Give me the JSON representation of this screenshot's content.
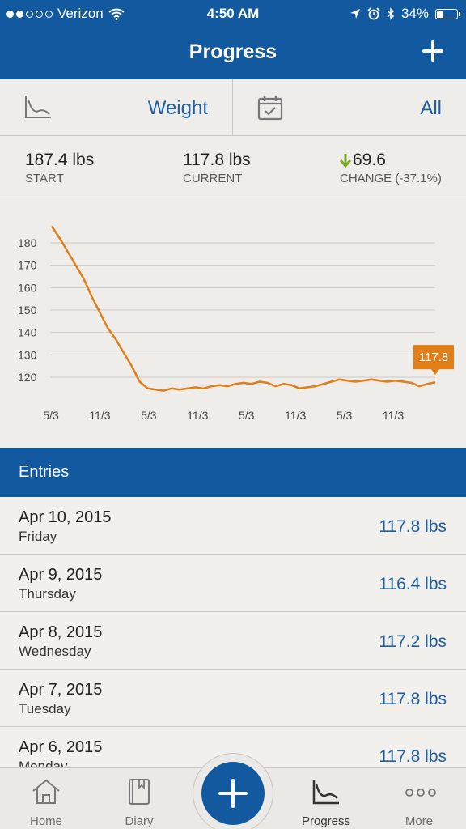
{
  "status_bar": {
    "carrier": "Verizon",
    "time": "4:50 AM",
    "battery": "34%",
    "battery_level": 0.34,
    "signal_bars": 2
  },
  "header": {
    "title": "Progress"
  },
  "filters": {
    "metric": "Weight",
    "range": "All"
  },
  "stats": {
    "start_value": "187.4 lbs",
    "start_label": "START",
    "current_value": "117.8 lbs",
    "current_label": "CURRENT",
    "change_value": "69.6",
    "change_label": "CHANGE (-37.1%)"
  },
  "colors": {
    "brand_blue": "#1359a0",
    "line_orange": "#e07e1a",
    "change_green": "#7aab2a"
  },
  "chart_data": {
    "type": "line",
    "ylim": [
      110,
      190
    ],
    "y_ticks": [
      180,
      170,
      160,
      150,
      140,
      130,
      120
    ],
    "x_tick_labels": [
      "5/3",
      "11/3",
      "5/3",
      "11/3",
      "5/3",
      "11/3",
      "5/3",
      "11/3"
    ],
    "x": [
      0,
      1,
      2,
      3,
      4,
      5,
      6,
      7,
      8,
      9,
      10,
      11,
      12,
      13,
      14,
      15,
      16,
      17,
      18,
      19,
      20,
      21,
      22,
      23,
      24,
      25,
      26,
      27,
      28,
      29,
      30,
      31,
      32,
      33,
      34,
      35,
      36,
      37,
      38,
      39,
      40,
      41,
      42,
      43,
      44,
      45,
      46,
      47,
      48
    ],
    "series": [
      {
        "values": [
          187.4,
          182,
          176,
          170,
          164,
          156,
          149,
          142,
          137,
          131,
          125,
          118,
          115,
          114.5,
          114,
          115,
          114.5,
          115,
          115.5,
          115,
          116,
          116.5,
          116,
          117,
          117.5,
          117,
          118,
          117.5,
          116,
          117,
          116.5,
          115,
          115.5,
          116,
          117,
          118,
          119,
          118.5,
          118,
          118.5,
          119,
          118.5,
          118,
          118.5,
          118,
          117.5,
          116,
          117,
          117.8
        ]
      }
    ],
    "last_point_label": "117.8"
  },
  "entries_header": "Entries",
  "entries": [
    {
      "date": "Apr 10, 2015",
      "day": "Friday",
      "weight": "117.8 lbs"
    },
    {
      "date": "Apr 9, 2015",
      "day": "Thursday",
      "weight": "116.4 lbs"
    },
    {
      "date": "Apr 8, 2015",
      "day": "Wednesday",
      "weight": "117.2 lbs"
    },
    {
      "date": "Apr 7, 2015",
      "day": "Tuesday",
      "weight": "117.8 lbs"
    },
    {
      "date": "Apr 6, 2015",
      "day": "Monday",
      "weight": "117.8 lbs"
    }
  ],
  "tabs": [
    {
      "label": "Home",
      "icon": "home-icon"
    },
    {
      "label": "Diary",
      "icon": "diary-icon"
    },
    {
      "label": "Progress",
      "icon": "progress-chart-icon",
      "active": true
    },
    {
      "label": "More",
      "icon": "more-dots-icon"
    }
  ]
}
